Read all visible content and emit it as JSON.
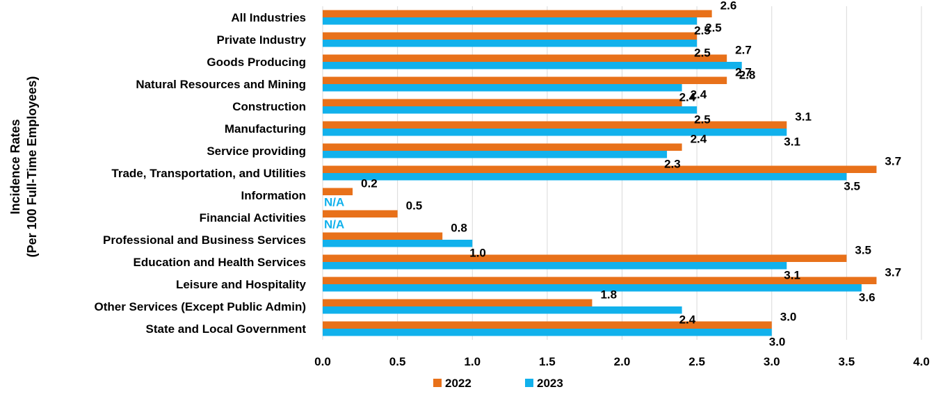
{
  "chart_data": {
    "type": "bar",
    "orientation": "horizontal",
    "title": "",
    "ylabel_lines": [
      "Incidence Rates",
      "(Per 100 Full-Time Employees)"
    ],
    "xlabel": "",
    "xlim": [
      0,
      4
    ],
    "xticks": [
      "0.0",
      "0.5",
      "1.0",
      "1.5",
      "2.0",
      "2.5",
      "3.0",
      "3.5",
      "4.0"
    ],
    "grid": "vertical",
    "legend_position": "bottom",
    "categories": [
      "All Industries",
      "Private Industry",
      "Goods Producing",
      "Natural Resources and Mining",
      "Construction",
      "Manufacturing",
      "Service providing",
      "Trade, Transportation, and Utilities",
      "Information",
      "Financial Activities",
      "Professional and Business Services",
      "Education and Health Services",
      "Leisure and Hospitality",
      "Other Services (Except Public Admin)",
      "State and Local Government"
    ],
    "series": [
      {
        "name": "2022",
        "color": "#E8711A",
        "values": [
          2.6,
          2.5,
          2.7,
          2.7,
          2.4,
          3.1,
          2.4,
          3.7,
          0.2,
          0.5,
          0.8,
          3.5,
          3.7,
          1.8,
          3.0
        ],
        "labels": [
          "2.6",
          "2.5",
          "2.7",
          "2.7",
          "2.4",
          "3.1",
          "2.4",
          "3.7",
          "0.2",
          "0.5",
          "0.8",
          "3.5",
          "3.7",
          "1.8",
          "3.0"
        ]
      },
      {
        "name": "2023",
        "color": "#11B1EC",
        "values": [
          2.5,
          2.5,
          2.8,
          2.4,
          2.5,
          3.1,
          2.3,
          3.5,
          null,
          null,
          1.0,
          3.1,
          3.6,
          2.4,
          3.0
        ],
        "labels": [
          "2.5",
          "2.5",
          "2.8",
          "2.4",
          "2.5",
          "3.1",
          "2.3",
          "3.5",
          "N/A",
          "N/A",
          "1.0",
          "3.1",
          "3.6",
          "2.4",
          "3.0"
        ]
      }
    ]
  }
}
